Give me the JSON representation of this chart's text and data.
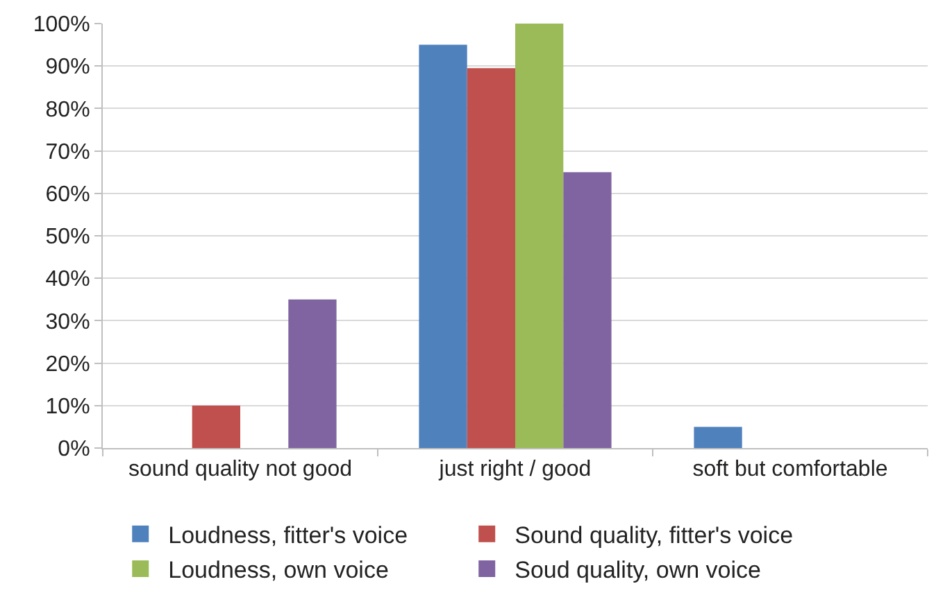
{
  "chart_data": {
    "type": "bar",
    "categories": [
      "sound quality not good",
      "just right / good",
      "soft but comfortable"
    ],
    "series": [
      {
        "name": "Loudness, fitter's voice",
        "color": "#4f81bd",
        "values": [
          0,
          95,
          5
        ]
      },
      {
        "name": "Sound quality, fitter's voice",
        "color": "#c0504d",
        "values": [
          10,
          89.5,
          0
        ]
      },
      {
        "name": "Loudness, own voice",
        "color": "#9bbb59",
        "values": [
          0,
          100,
          0
        ]
      },
      {
        "name": "Soud quality, own voice",
        "color": "#8064a2",
        "values": [
          35,
          65,
          0
        ]
      }
    ],
    "ylim": [
      0,
      100
    ],
    "yticks": [
      {
        "value": 0,
        "label": "0%"
      },
      {
        "value": 10,
        "label": "10%"
      },
      {
        "value": 20,
        "label": "20%"
      },
      {
        "value": 30,
        "label": "30%"
      },
      {
        "value": 40,
        "label": "40%"
      },
      {
        "value": 50,
        "label": "50%"
      },
      {
        "value": 60,
        "label": "60%"
      },
      {
        "value": 70,
        "label": "70%"
      },
      {
        "value": 80,
        "label": "80%"
      },
      {
        "value": 90,
        "label": "90%"
      },
      {
        "value": 100,
        "label": "100%"
      }
    ],
    "grid": "y",
    "legend": "bottom"
  }
}
